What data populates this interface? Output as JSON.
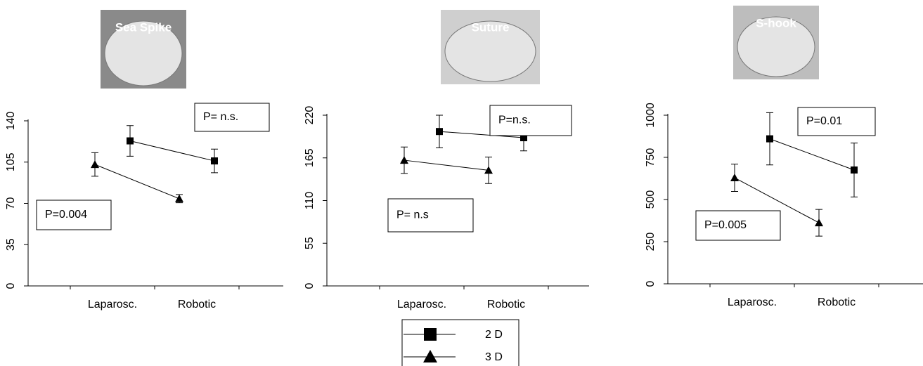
{
  "chart_data": [
    {
      "type": "line",
      "title": "Sea Spike",
      "categories": [
        "Laparosc.",
        "Robotic"
      ],
      "series": [
        {
          "name": "2 D",
          "marker": "square",
          "color": "#000000",
          "values": [
            123,
            106
          ],
          "errors": [
            13,
            10
          ]
        },
        {
          "name": "3 D",
          "marker": "triangle",
          "color": "#000000",
          "values": [
            103,
            74
          ],
          "errors": [
            10,
            3.5
          ]
        }
      ],
      "ylim": [
        0,
        140
      ],
      "yticks": [
        0,
        35,
        70,
        105,
        140
      ],
      "annotations": [
        "P= n.s.",
        "P=0.004"
      ]
    },
    {
      "type": "line",
      "title": "Suture",
      "categories": [
        "Laparosc.",
        "Robotic"
      ],
      "series": [
        {
          "name": "2 D",
          "marker": "square",
          "color": "#000000",
          "values": [
            199,
            191
          ],
          "errors": [
            21,
            17
          ]
        },
        {
          "name": "3 D",
          "marker": "triangle",
          "color": "#000000",
          "values": [
            162,
            149
          ],
          "errors": [
            17,
            17
          ]
        }
      ],
      "ylim": [
        0,
        220
      ],
      "yticks": [
        0,
        55,
        110,
        165,
        220
      ],
      "annotations": [
        "P=n.s.",
        "P= n.s"
      ]
    },
    {
      "type": "line",
      "title": "S-hook",
      "categories": [
        "Laparosc.",
        "Robotic"
      ],
      "series": [
        {
          "name": "2 D",
          "marker": "square",
          "color": "#000000",
          "values": [
            860,
            675
          ],
          "errors": [
            155,
            160
          ]
        },
        {
          "name": "3 D",
          "marker": "triangle",
          "color": "#000000",
          "values": [
            629,
            362
          ],
          "errors": [
            81,
            79
          ]
        }
      ],
      "ylim": [
        0,
        1000
      ],
      "yticks": [
        0,
        250,
        500,
        750,
        1000
      ],
      "annotations": [
        "P=0.01",
        "P=0.005"
      ]
    }
  ]
}
